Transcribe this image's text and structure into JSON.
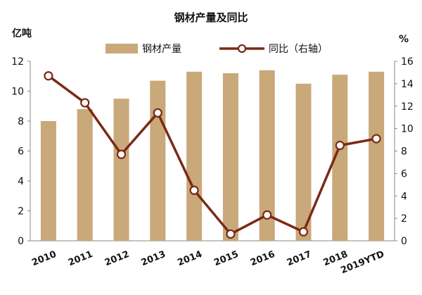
{
  "chart_data": {
    "type": "bar",
    "title": "钢材产量及同比",
    "categories": [
      "2010",
      "2011",
      "2012",
      "2013",
      "2014",
      "2015",
      "2016",
      "2017",
      "2018",
      "2019YTD"
    ],
    "series": [
      {
        "name": "钢材产量",
        "type": "bar",
        "axis": "left",
        "color": "#C9A87A",
        "values": [
          8.0,
          8.8,
          9.5,
          10.7,
          11.3,
          11.2,
          11.4,
          10.5,
          11.1,
          11.3
        ]
      },
      {
        "name": "同比（右轴）",
        "type": "line",
        "axis": "right",
        "color": "#7A2A16",
        "values": [
          14.7,
          12.3,
          7.7,
          11.4,
          4.5,
          0.6,
          2.3,
          0.8,
          8.5,
          9.1
        ]
      }
    ],
    "ylabel": "亿吨",
    "y2label": "%",
    "ylim": [
      0,
      12
    ],
    "y2lim": [
      0,
      16
    ],
    "yticks": [
      "0",
      "2",
      "4",
      "6",
      "8",
      "10",
      "12"
    ],
    "y2ticks": [
      "0",
      "2",
      "4",
      "6",
      "8",
      "10",
      "12",
      "14",
      "16"
    ],
    "grid": false,
    "legend": "top"
  }
}
